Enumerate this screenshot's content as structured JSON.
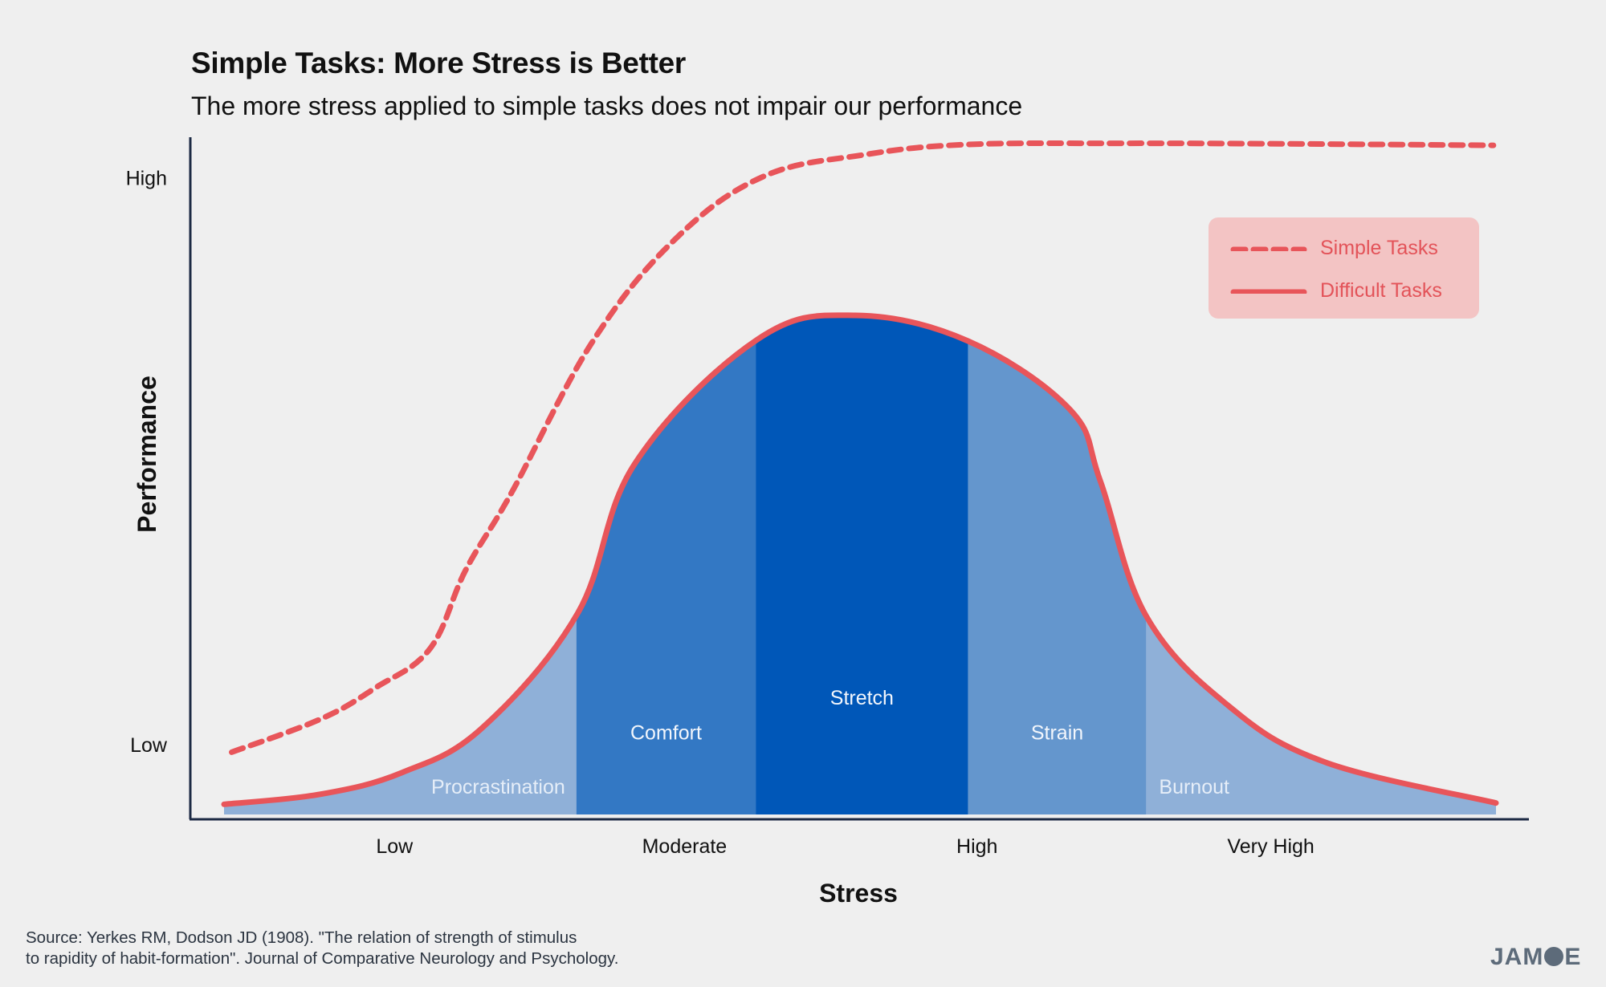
{
  "title": "Simple Tasks: More Stress is Better",
  "subtitle": "The more stress applied to simple tasks does not impair our performance",
  "source_lines": [
    "Source: Yerkes RM, Dodson JD (1908). \"The relation of strength of stimulus",
    "to rapidity of habit-formation\". Journal of Comparative Neurology and Psychology."
  ],
  "logo": {
    "part1": "JAM",
    "part2": "E",
    "full": "JAMOE"
  },
  "colors": {
    "background": "#efefef",
    "curve": "#e8555a",
    "legend_bg": "#f3c4c4",
    "axis": "#1c2a44",
    "procrastination": "#8fb0d8",
    "comfort": "#3378c4",
    "stretch": "#0057b8",
    "strain": "#6496cd",
    "burnout": "#8fb0d8"
  },
  "chart_data": {
    "type": "line",
    "title": "Simple Tasks: More Stress is Better",
    "subtitle": "The more stress applied to simple tasks does not impair our performance",
    "xlabel": "Stress",
    "ylabel": "Performance",
    "xlim": [
      0,
      100
    ],
    "ylim": [
      0,
      100
    ],
    "grid": false,
    "legend_position": "top-right",
    "x_ticks": [
      {
        "label": "Low",
        "x": 13.4
      },
      {
        "label": "Moderate",
        "x": 36.2
      },
      {
        "label": "High",
        "x": 59.2
      },
      {
        "label": "Very High",
        "x": 82.3
      }
    ],
    "y_ticks": [
      {
        "label": "High",
        "y": 94
      },
      {
        "label": "Low",
        "y": 10.3
      }
    ],
    "series": [
      {
        "name": "Simple Tasks",
        "style": "dashed",
        "x": [
          0.6,
          7.6,
          11.9,
          16.2,
          19.0,
          22.6,
          29.0,
          35.5,
          42.4,
          50.3,
          58.1,
          70,
          85,
          99.8
        ],
        "y": [
          9.2,
          14.1,
          18.7,
          24.5,
          36.1,
          47.5,
          69.9,
          85.0,
          94.2,
          97.4,
          98.9,
          99.1,
          99.0,
          98.8
        ]
      },
      {
        "name": "Difficult Tasks",
        "style": "solid",
        "x": [
          0,
          7.6,
          14.0,
          20.3,
          27.8,
          32.3,
          41.9,
          49.6,
          58.5,
          66.5,
          68.9,
          72.5,
          79.0,
          86.6,
          100
        ],
        "y": [
          1.5,
          3.0,
          6.2,
          12.8,
          29.7,
          51.8,
          70.1,
          73.7,
          69.9,
          59.8,
          49.2,
          29.3,
          16.0,
          7.7,
          1.7
        ]
      }
    ],
    "zones": [
      {
        "label": "Procrastination",
        "x_start": 0,
        "x_end": 27.7,
        "color": "#8fb0d8",
        "label_y": 4
      },
      {
        "label": "Comfort",
        "x_start": 27.7,
        "x_end": 41.8,
        "color": "#3378c4",
        "label_y": 12
      },
      {
        "label": "Stretch",
        "x_start": 41.8,
        "x_end": 58.5,
        "color": "#0057b8",
        "label_y": 17.2
      },
      {
        "label": "Strain",
        "x_start": 58.5,
        "x_end": 72.5,
        "color": "#6496cd",
        "label_y": 12
      },
      {
        "label": "Burnout",
        "x_start": 72.5,
        "x_end": 100,
        "color": "#8fb0d8",
        "label_y": 4
      }
    ]
  }
}
